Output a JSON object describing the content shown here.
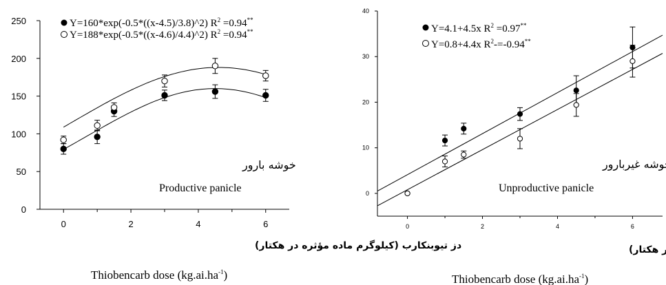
{
  "chart_data": [
    {
      "type": "scatter",
      "xlim": [
        -0.7,
        6.7
      ],
      "ylim": [
        0,
        250
      ],
      "xticks": [
        "0",
        "2",
        "4",
        "6"
      ],
      "yticks": [
        "0",
        "50",
        "100",
        "150",
        "200",
        "250"
      ],
      "x": [
        0,
        1,
        1.5,
        3,
        4.5,
        6
      ],
      "series": [
        {
          "marker": "filled-circle",
          "values": [
            80,
            96,
            130,
            151,
            156,
            151
          ],
          "errors": [
            7,
            9,
            7,
            7,
            9,
            8
          ],
          "fit": {
            "kind": "gaussian",
            "a": 160,
            "mu": 4.5,
            "sigma": 3.8
          },
          "equation": "Y=160*exp(-0.5*((x-4.5)/3.8)^2) R",
          "eq_sup": "2",
          "r2": " =0.94",
          "stars": "**"
        },
        {
          "marker": "open-circle",
          "values": [
            92,
            111,
            135,
            170,
            190,
            177
          ],
          "errors": [
            5,
            7,
            6,
            8,
            10,
            7
          ],
          "fit": {
            "kind": "gaussian",
            "a": 188,
            "mu": 4.6,
            "sigma": 4.4
          },
          "equation": "Y=188*exp(-0.5*((x-4.6)/4.4)^2) R",
          "eq_sup": "2",
          "r2": " =0.94",
          "stars": "**"
        }
      ],
      "annotation_fa": "خوشه بارور",
      "annotation_en": "Productive panicle",
      "xlabel_fa": "دز تیوبنکارب (کیلوگرم ماده مؤثره در هکتار)",
      "xlabel_en": "Thiobencarb dose (kg.ai.ha",
      "xlabel_sup": "-1",
      "xlabel_end": ")"
    },
    {
      "type": "scatter",
      "xlim": [
        -0.8,
        6.8
      ],
      "ylim": [
        -5,
        40
      ],
      "xticks": [
        "0",
        "2",
        "4",
        "6"
      ],
      "yticks": [
        "0",
        "10",
        "20",
        "30",
        "40"
      ],
      "x": [
        0,
        1,
        1.5,
        3,
        4.5,
        6
      ],
      "series": [
        {
          "marker": "filled-circle",
          "values": [
            0,
            11.6,
            14.2,
            17.4,
            22.6,
            32
          ],
          "errors": [
            0,
            1.2,
            1.2,
            1.4,
            3.2,
            4.5
          ],
          "fit": {
            "kind": "linear",
            "a": 4.1,
            "b": 4.5
          },
          "equation": "Y=4.1+4.5x  R",
          "eq_sup": "2",
          "r2": " =0.97",
          "stars": "**"
        },
        {
          "marker": "open-circle",
          "values": [
            0,
            7,
            8.5,
            12,
            19.4,
            29
          ],
          "errors": [
            0,
            1.2,
            0.8,
            2.2,
            2.5,
            3.5
          ],
          "fit": {
            "kind": "linear",
            "a": 0.8,
            "b": 4.4
          },
          "equation": "Y=0.8+4.4x  R",
          "eq_sup": "2",
          "r2": "-=-0.94",
          "stars": "**"
        }
      ],
      "annotation_fa": "خوشه غیربارور",
      "annotation_en": "Unproductive panicle",
      "xlabel_fa": "دز تیوبنکارب (کیلوگرم ماده مؤثره در هکتار)",
      "xlabel_en": "Thiobencarb dose (kg.ai.ha",
      "xlabel_sup": "-1",
      "xlabel_end": ")"
    }
  ]
}
